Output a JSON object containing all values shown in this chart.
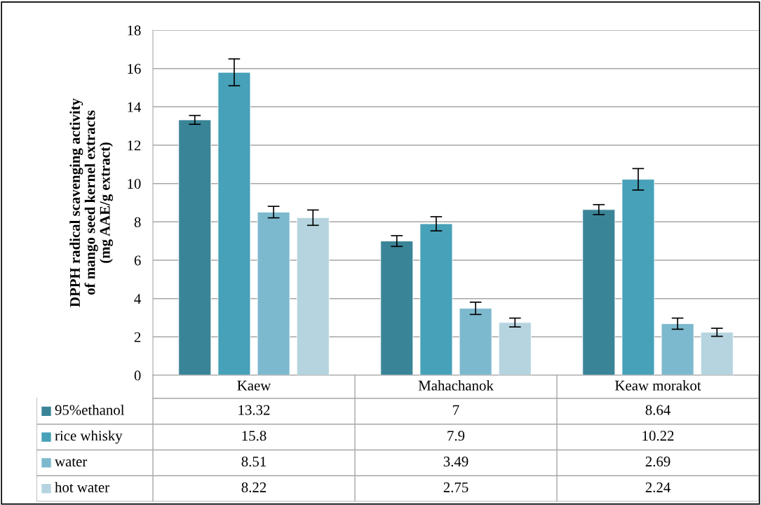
{
  "chart_data": {
    "type": "bar",
    "ylabel": "DPPH radical scavenging activity\nof mango seed kernel extracts\n(mg AAE/g extract)",
    "categories": [
      "Kaew",
      "Mahachanok",
      "Keaw morakot"
    ],
    "series": [
      {
        "name": "95%ethanol",
        "color": "#3a8497",
        "values": [
          13.32,
          7,
          8.64
        ],
        "errors": [
          0.23,
          0.28,
          0.26
        ]
      },
      {
        "name": "rice whisky",
        "color": "#47a1b8",
        "values": [
          15.8,
          7.9,
          10.22
        ],
        "errors": [
          0.7,
          0.37,
          0.56
        ]
      },
      {
        "name": "water",
        "color": "#7db9ce",
        "values": [
          8.51,
          3.49,
          2.69
        ],
        "errors": [
          0.3,
          0.32,
          0.29
        ]
      },
      {
        "name": "hot water",
        "color": "#b5d4df",
        "values": [
          8.22,
          2.75,
          2.24
        ],
        "errors": [
          0.4,
          0.23,
          0.21
        ]
      }
    ],
    "ylim": [
      0,
      18
    ],
    "yticks": [
      0,
      2,
      4,
      6,
      8,
      10,
      12,
      14,
      16,
      18
    ],
    "grid": "y",
    "data_labels": true,
    "legend": "bottom"
  }
}
